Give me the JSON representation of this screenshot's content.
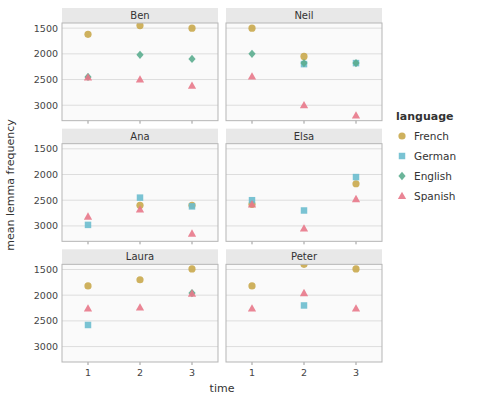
{
  "chart_data": [
    {
      "type": "scatter",
      "title": "Ben",
      "xlabel": "time",
      "ylabel": "mean lemma frequency",
      "legend_title": "language",
      "x": [
        1,
        2,
        3
      ],
      "xlim": [
        0.5,
        3.5
      ],
      "ylim": [
        3300,
        1400
      ],
      "xticks": [
        1,
        2,
        3
      ],
      "yticks": [
        1500,
        2000,
        2500,
        3000
      ],
      "grid": true,
      "tick_labels": "y",
      "series": [
        {
          "name": "French",
          "color": "#C9A84C",
          "marker": "circle",
          "values": [
            1620,
            1450,
            1500
          ]
        },
        {
          "name": "German",
          "color": "#6BBCCE",
          "marker": "square",
          "values": [
            null,
            null,
            null
          ]
        },
        {
          "name": "English",
          "color": "#5BAD8F",
          "marker": "diamond",
          "values": [
            2450,
            2020,
            2100
          ]
        },
        {
          "name": "Spanish",
          "color": "#E8788A",
          "marker": "triangle",
          "values": [
            2460,
            2500,
            2620
          ]
        }
      ]
    },
    {
      "type": "scatter",
      "title": "Neil",
      "x": [
        1,
        2,
        3
      ],
      "xlim": [
        0.5,
        3.5
      ],
      "ylim": [
        3300,
        1400
      ],
      "xticks": [
        1,
        2,
        3
      ],
      "yticks": [
        1500,
        2000,
        2500,
        3000
      ],
      "grid": true,
      "tick_labels": false,
      "series": [
        {
          "color": "#C9A84C",
          "marker": "circle",
          "values": [
            1500,
            2050,
            null
          ]
        },
        {
          "color": "#6BBCCE",
          "marker": "square",
          "values": [
            null,
            2200,
            2180
          ]
        },
        {
          "color": "#5BAD8F",
          "marker": "diamond",
          "values": [
            2000,
            2180,
            2180
          ]
        },
        {
          "color": "#E8788A",
          "marker": "triangle",
          "values": [
            2440,
            3000,
            3200
          ]
        }
      ]
    },
    {
      "type": "scatter",
      "title": "Ana",
      "x": [
        1,
        2,
        3
      ],
      "xlim": [
        0.5,
        3.5
      ],
      "ylim": [
        3300,
        1400
      ],
      "xticks": [
        1,
        2,
        3
      ],
      "yticks": [
        1500,
        2000,
        2500,
        3000
      ],
      "grid": true,
      "tick_labels": "y",
      "series": [
        {
          "color": "#C9A84C",
          "marker": "circle",
          "values": [
            null,
            2600,
            2600
          ]
        },
        {
          "color": "#6BBCCE",
          "marker": "square",
          "values": [
            2980,
            2450,
            2620
          ]
        },
        {
          "color": "#5BAD8F",
          "marker": "diamond",
          "values": [
            null,
            null,
            null
          ]
        },
        {
          "color": "#E8788A",
          "marker": "triangle",
          "values": [
            2820,
            2680,
            3150
          ]
        }
      ]
    },
    {
      "type": "scatter",
      "title": "Elsa",
      "x": [
        1,
        2,
        3
      ],
      "xlim": [
        0.5,
        3.5
      ],
      "ylim": [
        3300,
        1400
      ],
      "xticks": [
        1,
        2,
        3
      ],
      "yticks": [
        1500,
        2000,
        2500,
        3000
      ],
      "grid": true,
      "tick_labels": false,
      "series": [
        {
          "color": "#C9A84C",
          "marker": "circle",
          "values": [
            2580,
            null,
            2180
          ]
        },
        {
          "color": "#6BBCCE",
          "marker": "square",
          "values": [
            2500,
            2700,
            2050
          ]
        },
        {
          "color": "#5BAD8F",
          "marker": "diamond",
          "values": [
            null,
            null,
            null
          ]
        },
        {
          "color": "#E8788A",
          "marker": "triangle",
          "values": [
            2580,
            3050,
            2480
          ]
        }
      ]
    },
    {
      "type": "scatter",
      "title": "Laura",
      "x": [
        1,
        2,
        3
      ],
      "xlim": [
        0.5,
        3.5
      ],
      "ylim": [
        3300,
        1400
      ],
      "xticks": [
        1,
        2,
        3
      ],
      "yticks": [
        1500,
        2000,
        2500,
        3000
      ],
      "grid": true,
      "series": [
        {
          "color": "#C9A84C",
          "marker": "circle",
          "values": [
            1820,
            1700,
            1490
          ]
        },
        {
          "color": "#6BBCCE",
          "marker": "square",
          "values": [
            2580,
            null,
            null
          ]
        },
        {
          "color": "#5BAD8F",
          "marker": "diamond",
          "values": [
            null,
            null,
            1960
          ]
        },
        {
          "color": "#E8788A",
          "marker": "triangle",
          "values": [
            2260,
            2240,
            1970
          ]
        }
      ]
    },
    {
      "type": "scatter",
      "title": "Peter",
      "x": [
        1,
        2,
        3
      ],
      "xlim": [
        0.5,
        3.5
      ],
      "ylim": [
        3300,
        1400
      ],
      "xticks": [
        1,
        2,
        3
      ],
      "yticks": [
        1500,
        2000,
        2500,
        3000
      ],
      "grid": true,
      "tick_labels": "x",
      "series": [
        {
          "color": "#C9A84C",
          "marker": "circle",
          "values": [
            1820,
            1400,
            1490
          ]
        },
        {
          "color": "#6BBCCE",
          "marker": "square",
          "values": [
            null,
            2200,
            null
          ]
        },
        {
          "color": "#5BAD8F",
          "marker": "diamond",
          "values": [
            null,
            null,
            null
          ]
        },
        {
          "color": "#E8788A",
          "marker": "triangle",
          "values": [
            2260,
            1960,
            2260
          ]
        }
      ]
    }
  ]
}
